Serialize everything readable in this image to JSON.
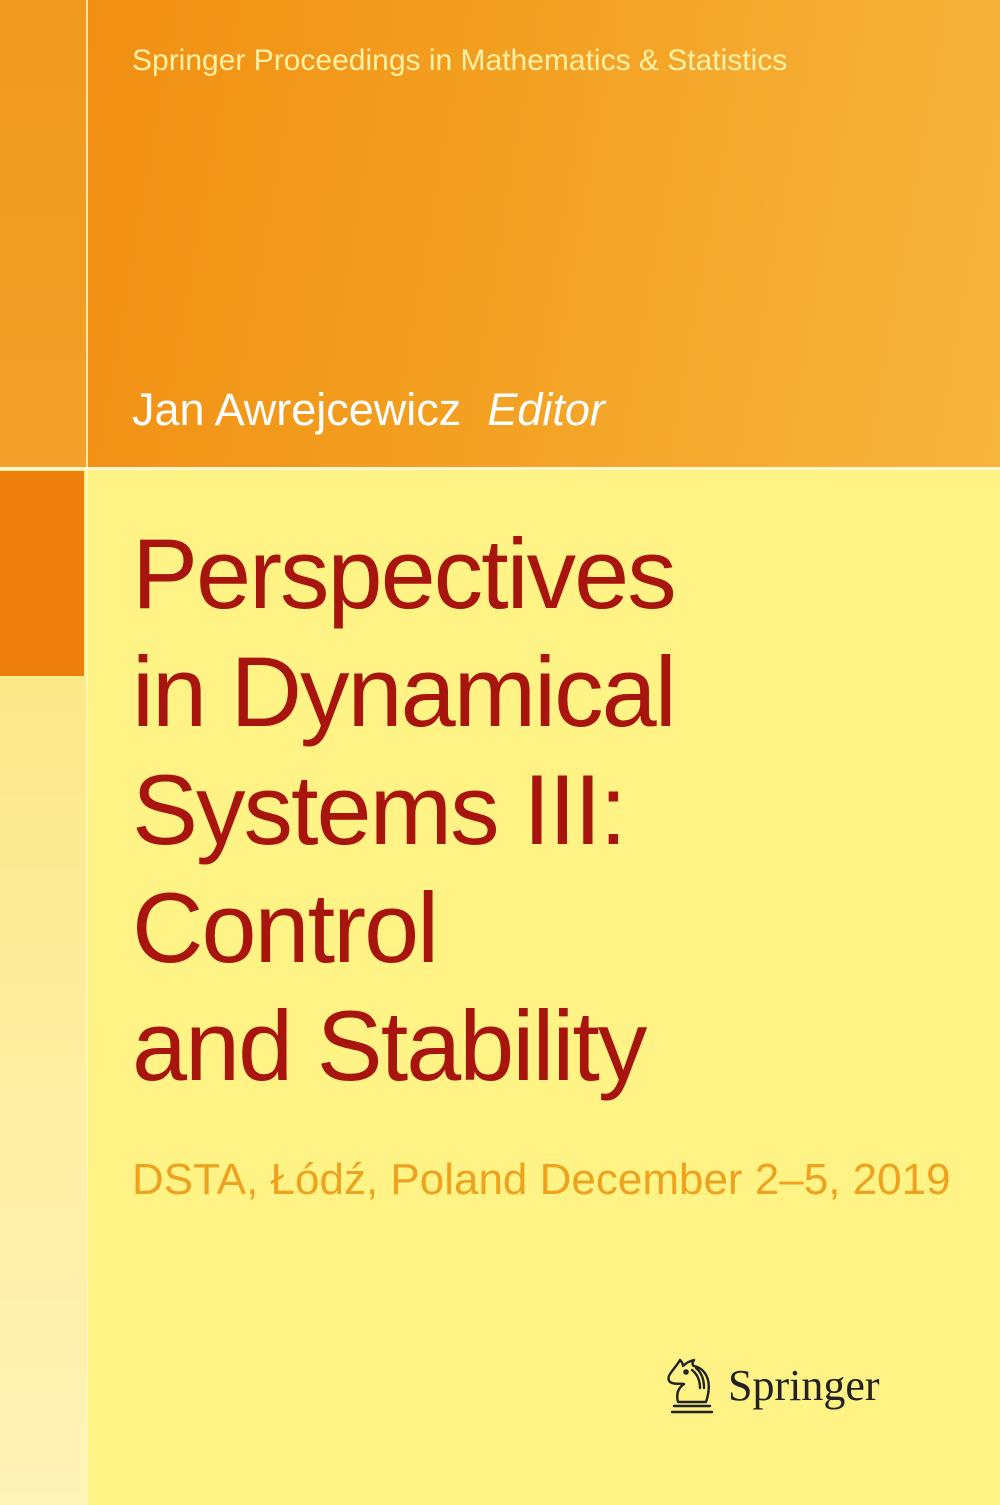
{
  "series": "Springer Proceedings in Mathematics & Statistics",
  "editor": {
    "name": "Jan Awrejcewicz",
    "role": "Editor"
  },
  "title_lines": [
    "Perspectives",
    "in Dynamical",
    "Systems III:",
    "Control",
    "and Stability"
  ],
  "subtitle": "DSTA, Łódź, Poland December 2–5, 2019",
  "publisher": {
    "name": "Springer",
    "logo_icon": "knight-chess-piece-icon"
  },
  "colors": {
    "top_band": "#f39e1f",
    "accent_block": "#ef7f0c",
    "background": "#fef384",
    "title": "#a8150f",
    "subtitle": "#eea320",
    "series_text": "#fff1a6"
  }
}
